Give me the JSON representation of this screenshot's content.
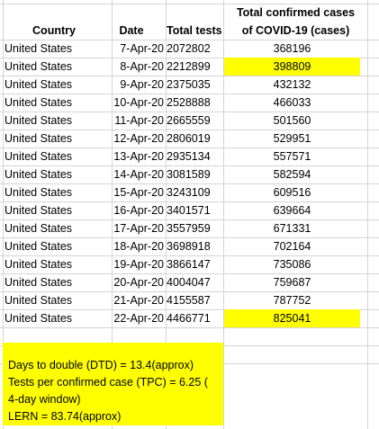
{
  "table": {
    "headers": {
      "country": "Country",
      "date": "Date",
      "tests": "Total tests",
      "cases_line1": "Total confirmed cases",
      "cases_line2": "of COVID-19 (cases)"
    },
    "rows": [
      {
        "country": "United States",
        "date": "7-Apr-20",
        "tests": "2072802",
        "cases": "368196"
      },
      {
        "country": "United States",
        "date": "8-Apr-20",
        "tests": "2212899",
        "cases": "398809"
      },
      {
        "country": "United States",
        "date": "9-Apr-20",
        "tests": "2375035",
        "cases": "432132"
      },
      {
        "country": "United States",
        "date": "10-Apr-20",
        "tests": "2528888",
        "cases": "466033"
      },
      {
        "country": "United States",
        "date": "11-Apr-20",
        "tests": "2665559",
        "cases": "501560"
      },
      {
        "country": "United States",
        "date": "12-Apr-20",
        "tests": "2806019",
        "cases": "529951"
      },
      {
        "country": "United States",
        "date": "13-Apr-20",
        "tests": "2935134",
        "cases": "557571"
      },
      {
        "country": "United States",
        "date": "14-Apr-20",
        "tests": "3081589",
        "cases": "582594"
      },
      {
        "country": "United States",
        "date": "15-Apr-20",
        "tests": "3243109",
        "cases": "609516"
      },
      {
        "country": "United States",
        "date": "16-Apr-20",
        "tests": "3401571",
        "cases": "639664"
      },
      {
        "country": "United States",
        "date": "17-Apr-20",
        "tests": "3557959",
        "cases": "671331"
      },
      {
        "country": "United States",
        "date": "18-Apr-20",
        "tests": "3698918",
        "cases": "702164"
      },
      {
        "country": "United States",
        "date": "19-Apr-20",
        "tests": "3866147",
        "cases": "735086"
      },
      {
        "country": "United States",
        "date": "20-Apr-20",
        "tests": "4004047",
        "cases": "759687"
      },
      {
        "country": "United States",
        "date": "21-Apr-20",
        "tests": "4155587",
        "cases": "787752"
      },
      {
        "country": "United States",
        "date": "22-Apr-20",
        "tests": "4466771",
        "cases": "825041"
      }
    ]
  },
  "notes": {
    "line1": "Days to double (DTD) = 13.4(approx)",
    "line2": "Tests per confirmed case (TPC) = 6.25 (",
    "line3": "4-day window)",
    "line4": "LERN = 83.74(approx)"
  },
  "colors": {
    "highlight": "#ffff00",
    "gridline": "#d4d4d4"
  }
}
